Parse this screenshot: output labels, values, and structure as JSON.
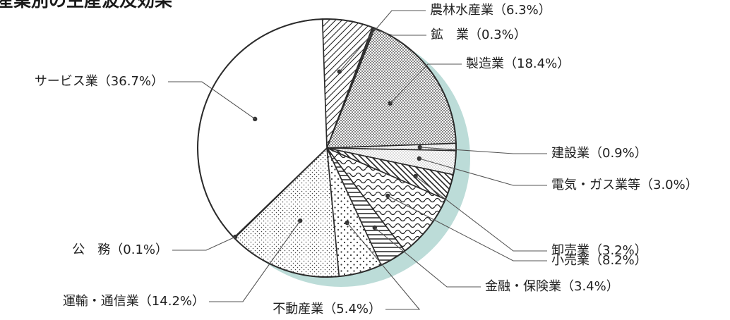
{
  "chart_data": {
    "type": "pie",
    "title": "産業別の生産波及効果",
    "series": [
      {
        "slices": [
          {
            "name": "農林水産業",
            "value": 6.3,
            "label": "農林水産業（6.3%）",
            "pattern": "hatch-right"
          },
          {
            "name": "鉱業",
            "value": 0.3,
            "label": "鉱　業（0.3%）",
            "pattern": "solid-dark"
          },
          {
            "name": "製造業",
            "value": 18.4,
            "label": "製造業（18.4%）",
            "pattern": "dense-dots"
          },
          {
            "name": "建設業",
            "value": 0.9,
            "label": "建設業（0.9%）",
            "pattern": "fine-dots"
          },
          {
            "name": "電気・ガス業等",
            "value": 3.0,
            "label": "電気・ガス業等（3.0%）",
            "pattern": "fine-dots"
          },
          {
            "name": "卸売業",
            "value": 3.2,
            "label": "卸売業（3.2%）",
            "pattern": "hatch-left"
          },
          {
            "name": "小売業",
            "value": 8.2,
            "label": "小売業（8.2%）",
            "pattern": "waves"
          },
          {
            "name": "金融・保険業",
            "value": 3.4,
            "label": "金融・保険業（3.4%）",
            "pattern": "horizontal"
          },
          {
            "name": "不動産業",
            "value": 5.4,
            "label": "不動産業（5.4%）",
            "pattern": "sparse-dots"
          },
          {
            "name": "運輸・通信業",
            "value": 14.2,
            "label": "運輸・通信業（14.2%）",
            "pattern": "medium-dots"
          },
          {
            "name": "公務",
            "value": 0.1,
            "label": "公　務（0.1%）",
            "pattern": "solid-dark"
          },
          {
            "name": "サービス業",
            "value": 36.7,
            "label": "サービス業（36.7%）",
            "pattern": "plain"
          }
        ]
      }
    ],
    "start_angle_deg": 0,
    "direction": "clockwise",
    "legend": "none",
    "colors": {
      "shadow": "#bcdcd8",
      "outline": "#2b2b2b",
      "text": "#1f1f1f"
    }
  }
}
